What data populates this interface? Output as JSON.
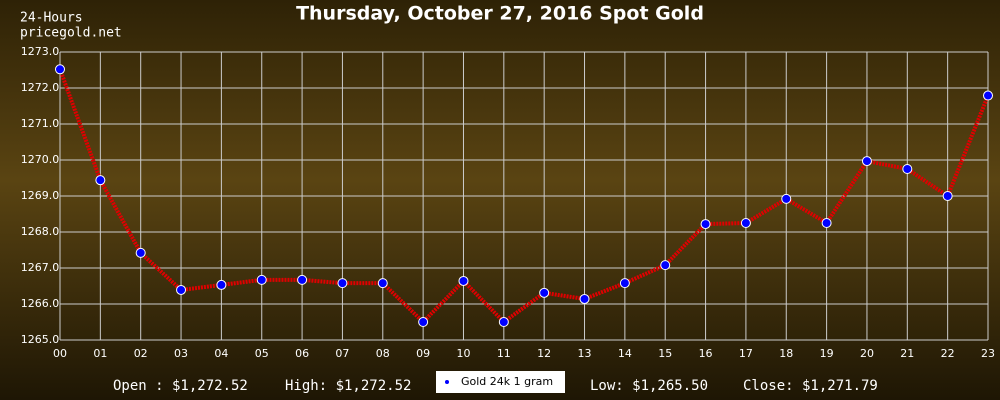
{
  "chart_data": {
    "type": "line",
    "title": "Thursday, October 27, 2016 Spot Gold",
    "subtitle": "24-Hours",
    "source": "pricegold.net",
    "categories": [
      "00",
      "01",
      "02",
      "03",
      "04",
      "05",
      "06",
      "07",
      "08",
      "09",
      "10",
      "11",
      "12",
      "13",
      "14",
      "15",
      "16",
      "17",
      "18",
      "19",
      "20",
      "21",
      "22",
      "23"
    ],
    "series": [
      {
        "name": "Gold 24k 1 gram",
        "color": "#e00000",
        "marker_color": "#0000ff",
        "values": [
          1272.52,
          1269.44,
          1267.42,
          1266.39,
          1266.53,
          1266.67,
          1266.67,
          1266.58,
          1266.58,
          1265.5,
          1266.64,
          1265.5,
          1266.31,
          1266.14,
          1266.58,
          1267.08,
          1268.22,
          1268.25,
          1268.92,
          1268.25,
          1269.97,
          1269.75,
          1269.0,
          1271.79
        ]
      }
    ],
    "ylim": [
      1265,
      1273
    ],
    "yticks": [
      {
        "value": 1265,
        "label": "1265.0"
      },
      {
        "value": 1266,
        "label": "1266.0"
      },
      {
        "value": 1267,
        "label": "1267.0"
      },
      {
        "value": 1268,
        "label": "1268.0"
      },
      {
        "value": 1269,
        "label": "1269.0"
      },
      {
        "value": 1270,
        "label": "1270.0"
      },
      {
        "value": 1271,
        "label": "1271.0"
      },
      {
        "value": 1272,
        "label": "1272.0"
      },
      {
        "value": 1273,
        "label": "1273.0"
      }
    ],
    "grid": true,
    "annotations": [
      "Open : $1,272.52",
      "High: $1,272.52",
      "Low: $1,265.50",
      "Close: $1,271.79"
    ]
  }
}
